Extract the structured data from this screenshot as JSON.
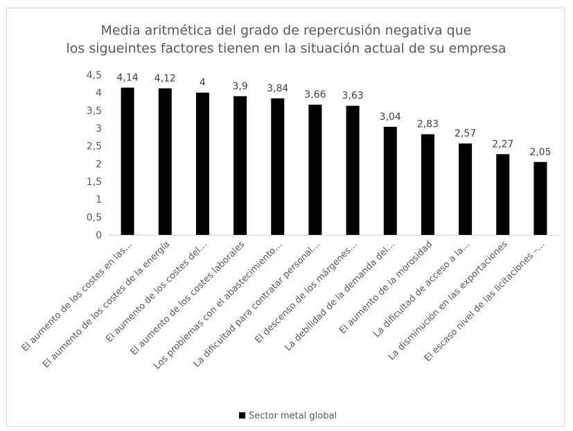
{
  "chart_data": {
    "type": "bar",
    "title_lines": [
      "Media aritmética del grado de repercusión negativa que",
      "los  sigueintes factores tienen en la situación actual de su empresa"
    ],
    "categories": [
      "El aumento de los costes en las…",
      "El aumento de los costes de la energía",
      "El aumento de los costes del…",
      "El aumento de los costes laborales",
      "Los problemas con el abastecimiento…",
      "La dificultad para contratar personal…",
      "El descenso de los márgenes…",
      "La debilidad de la demanda del…",
      "El aumento de la morosidad",
      "La dificultad de acceso a la…",
      "La disminución en las exportaciones",
      "El escaso nivel de las licitaciones –…"
    ],
    "series": [
      {
        "name": "Sector metal global",
        "values": [
          4.14,
          4.12,
          4,
          3.9,
          3.84,
          3.66,
          3.63,
          3.04,
          2.83,
          2.57,
          2.27,
          2.05
        ],
        "value_labels": [
          "4,14",
          "4,12",
          "4",
          "3,9",
          "3,84",
          "3,66",
          "3,63",
          "3,04",
          "2,83",
          "2,57",
          "2,27",
          "2,05"
        ],
        "color": "#000000"
      }
    ],
    "y_ticks": [
      "0",
      "0,5",
      "1",
      "1,5",
      "2",
      "2,5",
      "3",
      "3,5",
      "4",
      "4,5"
    ],
    "ylim": [
      0,
      4.5
    ],
    "grid": false,
    "legend_position": "bottom"
  }
}
